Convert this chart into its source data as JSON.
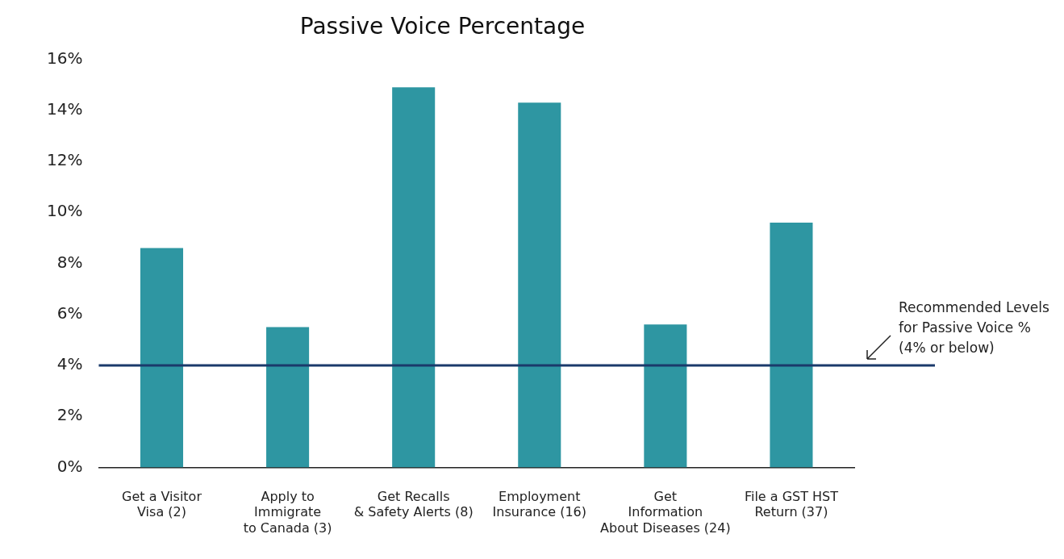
{
  "chart_data": {
    "type": "bar",
    "title": "Passive Voice Percentage",
    "categories": [
      "Get a Visitor\nVisa (2)",
      "Apply to\nImmigrate\nto Canada (3)",
      "Get Recalls\n& Safety Alerts (8)",
      "Employment\nInsurance (16)",
      "Get\nInformation\nAbout Diseases (24)",
      "File a GST HST\nReturn (37)"
    ],
    "values": [
      8.6,
      5.5,
      14.9,
      14.3,
      5.6,
      9.6
    ],
    "color": "#2e96a2",
    "ylim": [
      0,
      16
    ],
    "yticks": [
      {
        "value": 0,
        "label": "0%"
      },
      {
        "value": 2,
        "label": "2%"
      },
      {
        "value": 4,
        "label": "4%"
      },
      {
        "value": 6,
        "label": "6%"
      },
      {
        "value": 8,
        "label": "8%"
      },
      {
        "value": 10,
        "label": "10%"
      },
      {
        "value": 12,
        "label": "12%"
      },
      {
        "value": 14,
        "label": "14%"
      },
      {
        "value": 16,
        "label": "16%"
      }
    ],
    "ref_lines": [
      {
        "axis": "y",
        "value": 4,
        "label": "Recommended Levels\nfor Passive Voice %\n(4% or below)",
        "color": "#1a3a6b"
      }
    ],
    "grid": false,
    "legend": false
  }
}
